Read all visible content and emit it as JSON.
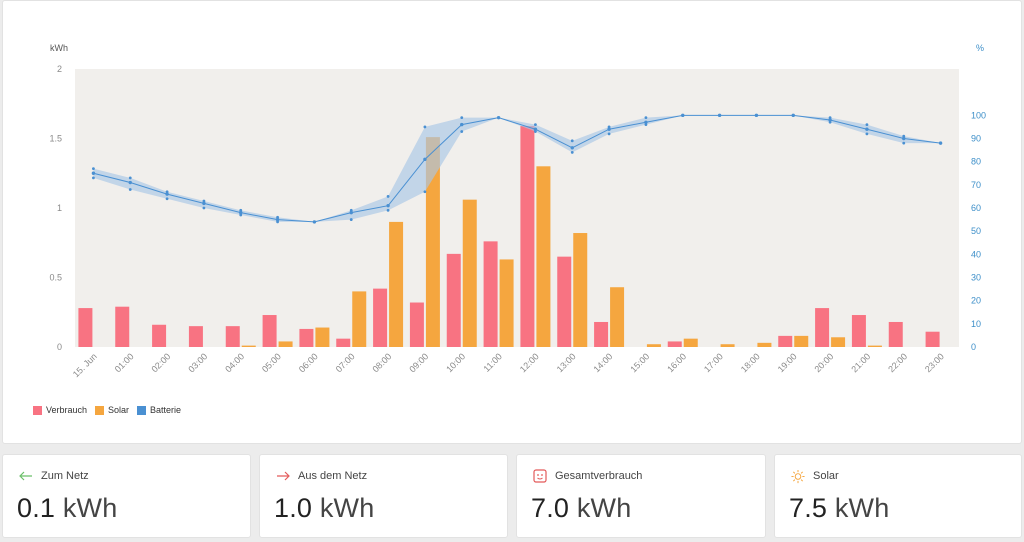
{
  "chart_data": {
    "type": "bar",
    "categories": [
      "15. Jun",
      "01:00",
      "02:00",
      "03:00",
      "04:00",
      "05:00",
      "06:00",
      "07:00",
      "08:00",
      "09:00",
      "10:00",
      "11:00",
      "12:00",
      "13:00",
      "14:00",
      "15:00",
      "16:00",
      "17:00",
      "18:00",
      "19:00",
      "20:00",
      "21:00",
      "22:00",
      "23:00"
    ],
    "ylabel": "kWh",
    "y2label": "%",
    "ylim": [
      0,
      2
    ],
    "y2lim": [
      0,
      120
    ],
    "yticks": [
      "0",
      "0.5",
      "1",
      "1.5",
      "2"
    ],
    "y2ticks": [
      "0",
      "10",
      "20",
      "30",
      "40",
      "50",
      "60",
      "70",
      "80",
      "90",
      "100"
    ],
    "grid": false,
    "legend_position": "bottom-left",
    "series": [
      {
        "name": "Verbrauch",
        "color": "#f87382",
        "values": [
          0.28,
          0.29,
          0.16,
          0.15,
          0.15,
          0.23,
          0.13,
          0.06,
          0.42,
          0.32,
          0.67,
          0.76,
          1.59,
          0.65,
          0.18,
          0,
          0.04,
          0,
          0,
          0.08,
          0.28,
          0.23,
          0.18,
          0.11
        ]
      },
      {
        "name": "Solar",
        "color": "#f5a63f",
        "values": [
          0,
          0,
          0,
          0,
          0.01,
          0.04,
          0.14,
          0.4,
          0.9,
          1.51,
          1.06,
          0.63,
          1.3,
          0.82,
          0.43,
          0.02,
          0.06,
          0.02,
          0.03,
          0.08,
          0.07,
          0.01,
          0,
          0
        ]
      },
      {
        "name": "Batterie",
        "color": "#4a90d2",
        "mean": [
          75,
          71,
          66,
          62,
          58,
          55,
          54,
          58,
          61,
          81,
          96,
          99,
          94,
          86,
          94,
          97,
          100,
          100,
          100,
          100,
          98,
          94,
          90,
          88
        ],
        "min": [
          73,
          68,
          64,
          60,
          57,
          54,
          54,
          55,
          59,
          67,
          93,
          99,
          93,
          84,
          92,
          96,
          100,
          100,
          100,
          100,
          97,
          92,
          88,
          88
        ],
        "max": [
          77,
          73,
          67,
          63,
          59,
          56,
          54,
          59,
          65,
          95,
          99,
          99,
          96,
          89,
          95,
          99,
          100,
          100,
          100,
          100,
          99,
          96,
          91,
          88
        ]
      }
    ]
  },
  "colors": {
    "plot_bg": "#f1efec",
    "axis_text": "#8a8a8a",
    "battery_axis_text": "#3d8fc9",
    "battery_band": "#a9c6e6"
  },
  "stats": [
    {
      "label": "Zum Netz",
      "value": "0.1",
      "unit": "kWh",
      "icon": "arrow-left-icon",
      "icon_color": "#6abf69"
    },
    {
      "label": "Aus dem Netz",
      "value": "1.0",
      "unit": "kWh",
      "icon": "arrow-right-icon",
      "icon_color": "#e35a5a"
    },
    {
      "label": "Gesamtverbrauch",
      "value": "7.0",
      "unit": "kWh",
      "icon": "power-outlet-icon",
      "icon_color": "#e35a5a"
    },
    {
      "label": "Solar",
      "value": "7.5",
      "unit": "kWh",
      "icon": "sun-icon",
      "icon_color": "#f5a63f"
    }
  ]
}
